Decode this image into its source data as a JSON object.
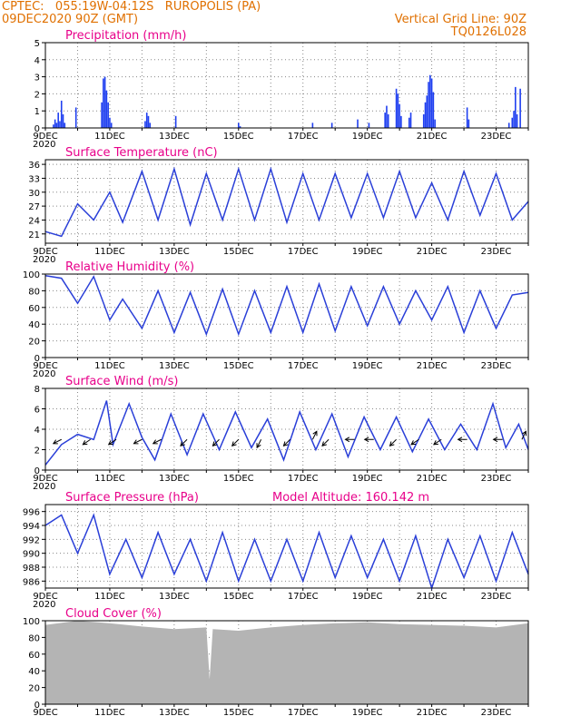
{
  "header": {
    "line1_left": "CPTEC:   055:19W-04:12S   RUROPOLIS (PA)",
    "line2_left": "09DEC2020 90Z (GMT)",
    "line1_right": "Vertical Grid Line: 90Z",
    "line2_right": "TQ0126L028"
  },
  "x_ticks": [
    "9DEC",
    "11DEC",
    "13DEC",
    "15DEC",
    "17DEC",
    "19DEC",
    "21DEC",
    "23DEC"
  ],
  "x_cut_label": "2020",
  "colors": {
    "title": "#e8008a",
    "header": "#e07000",
    "line": "#2a3fd8",
    "bar": "#1f3ff0",
    "cloud": "#b4b4b4",
    "grid": "#888888"
  },
  "chart_data": [
    {
      "id": "precip",
      "type": "bar",
      "title": "Precipitation (mm/h)",
      "ylim": [
        0,
        5
      ],
      "yticks": [
        "0",
        "1",
        "2",
        "3",
        "4",
        "5"
      ],
      "grid": true,
      "x_units": "days since 9DEC00Z",
      "x_range": [
        0,
        15
      ],
      "points": [
        [
          0.25,
          0.2
        ],
        [
          0.3,
          0.5
        ],
        [
          0.35,
          0.3
        ],
        [
          0.4,
          0.9
        ],
        [
          0.45,
          0.4
        ],
        [
          0.5,
          1.6
        ],
        [
          0.55,
          0.8
        ],
        [
          0.6,
          0.3
        ],
        [
          0.95,
          1.2
        ],
        [
          1.75,
          1.5
        ],
        [
          1.8,
          2.9
        ],
        [
          1.85,
          3.0
        ],
        [
          1.9,
          2.2
        ],
        [
          1.95,
          1.5
        ],
        [
          2.0,
          0.6
        ],
        [
          2.05,
          0.3
        ],
        [
          3.1,
          0.4
        ],
        [
          3.15,
          0.9
        ],
        [
          3.2,
          0.7
        ],
        [
          3.25,
          0.3
        ],
        [
          4.05,
          0.7
        ],
        [
          6.0,
          0.3
        ],
        [
          6.05,
          0.1
        ],
        [
          8.3,
          0.3
        ],
        [
          8.9,
          0.3
        ],
        [
          9.7,
          0.5
        ],
        [
          10.05,
          0.3
        ],
        [
          10.55,
          0.9
        ],
        [
          10.6,
          1.3
        ],
        [
          10.65,
          0.8
        ],
        [
          10.9,
          2.3
        ],
        [
          10.95,
          2.0
        ],
        [
          11.0,
          1.4
        ],
        [
          11.05,
          0.7
        ],
        [
          11.3,
          0.6
        ],
        [
          11.35,
          0.9
        ],
        [
          11.75,
          0.8
        ],
        [
          11.8,
          1.5
        ],
        [
          11.85,
          1.9
        ],
        [
          11.9,
          2.7
        ],
        [
          11.95,
          3.1
        ],
        [
          12.0,
          2.9
        ],
        [
          12.05,
          2.1
        ],
        [
          12.1,
          0.5
        ],
        [
          13.1,
          1.2
        ],
        [
          13.15,
          0.5
        ],
        [
          14.4,
          0.3
        ],
        [
          14.5,
          0.6
        ],
        [
          14.55,
          1.0
        ],
        [
          14.6,
          2.4
        ],
        [
          14.65,
          0.8
        ],
        [
          14.75,
          2.3
        ]
      ]
    },
    {
      "id": "temp",
      "type": "line",
      "title": "Surface Temperature (nC)",
      "ylim": [
        19,
        37
      ],
      "yticks": [
        "21",
        "24",
        "27",
        "30",
        "33",
        "36"
      ],
      "grid": true,
      "x_units": "days since 9DEC00Z",
      "points": [
        [
          0,
          21.5
        ],
        [
          0.5,
          20.5
        ],
        [
          1,
          27.5
        ],
        [
          1.5,
          24
        ],
        [
          2,
          30
        ],
        [
          2.4,
          23.5
        ],
        [
          3,
          34.5
        ],
        [
          3.5,
          24
        ],
        [
          4,
          35
        ],
        [
          4.5,
          23
        ],
        [
          5,
          34
        ],
        [
          5.5,
          24
        ],
        [
          6,
          35
        ],
        [
          6.5,
          24
        ],
        [
          7,
          35
        ],
        [
          7.5,
          23.5
        ],
        [
          8,
          34
        ],
        [
          8.5,
          24
        ],
        [
          9,
          34
        ],
        [
          9.5,
          24.5
        ],
        [
          10,
          34
        ],
        [
          10.5,
          24.5
        ],
        [
          11,
          34.5
        ],
        [
          11.5,
          24.5
        ],
        [
          12,
          32
        ],
        [
          12.5,
          24
        ],
        [
          13,
          34.5
        ],
        [
          13.5,
          25
        ],
        [
          14,
          34
        ],
        [
          14.5,
          24
        ],
        [
          15,
          28
        ]
      ]
    },
    {
      "id": "rh",
      "type": "line",
      "title": "Relative Humidity (%)",
      "ylim": [
        0,
        100
      ],
      "yticks": [
        "0",
        "20",
        "40",
        "60",
        "80",
        "100"
      ],
      "grid": true,
      "x_units": "days since 9DEC00Z",
      "points": [
        [
          0,
          98
        ],
        [
          0.5,
          95
        ],
        [
          1,
          65
        ],
        [
          1.5,
          97
        ],
        [
          2,
          45
        ],
        [
          2.4,
          70
        ],
        [
          3,
          35
        ],
        [
          3.5,
          80
        ],
        [
          4,
          30
        ],
        [
          4.5,
          78
        ],
        [
          5,
          28
        ],
        [
          5.5,
          82
        ],
        [
          6,
          28
        ],
        [
          6.5,
          80
        ],
        [
          7,
          30
        ],
        [
          7.5,
          85
        ],
        [
          8,
          30
        ],
        [
          8.5,
          88
        ],
        [
          9,
          32
        ],
        [
          9.5,
          85
        ],
        [
          10,
          38
        ],
        [
          10.5,
          85
        ],
        [
          11,
          40
        ],
        [
          11.5,
          80
        ],
        [
          12,
          45
        ],
        [
          12.5,
          85
        ],
        [
          13,
          30
        ],
        [
          13.5,
          80
        ],
        [
          14,
          35
        ],
        [
          14.5,
          75
        ],
        [
          15,
          78
        ]
      ]
    },
    {
      "id": "wind",
      "type": "line",
      "title": "Surface Wind (m/s)",
      "ylim": [
        0,
        8
      ],
      "yticks": [
        "0",
        "2",
        "4",
        "6",
        "8"
      ],
      "grid": true,
      "x_units": "days since 9DEC00Z",
      "points": [
        [
          0,
          0.5
        ],
        [
          0.5,
          2.5
        ],
        [
          1,
          3.5
        ],
        [
          1.5,
          3
        ],
        [
          1.9,
          6.8
        ],
        [
          2.1,
          2.5
        ],
        [
          2.6,
          6.5
        ],
        [
          3.0,
          3.2
        ],
        [
          3.4,
          1.0
        ],
        [
          3.9,
          5.5
        ],
        [
          4.4,
          1.5
        ],
        [
          4.9,
          5.5
        ],
        [
          5.4,
          2.0
        ],
        [
          5.9,
          5.7
        ],
        [
          6.4,
          2.2
        ],
        [
          6.9,
          5.0
        ],
        [
          7.4,
          1.0
        ],
        [
          7.9,
          5.7
        ],
        [
          8.4,
          2.0
        ],
        [
          8.9,
          5.5
        ],
        [
          9.4,
          1.3
        ],
        [
          9.9,
          5.2
        ],
        [
          10.4,
          2.0
        ],
        [
          10.9,
          5.2
        ],
        [
          11.4,
          1.8
        ],
        [
          11.9,
          5.0
        ],
        [
          12.4,
          2.0
        ],
        [
          12.9,
          4.5
        ],
        [
          13.4,
          2.0
        ],
        [
          13.9,
          6.5
        ],
        [
          14.3,
          2.2
        ],
        [
          14.7,
          4.5
        ],
        [
          15,
          2
        ]
      ],
      "arrows": [
        [
          0.5,
          -2,
          -1
        ],
        [
          1.4,
          -3,
          -2
        ],
        [
          2.2,
          -3,
          -2
        ],
        [
          3.0,
          -2,
          -1
        ],
        [
          3.6,
          -2,
          -1
        ],
        [
          4.4,
          -2,
          -2
        ],
        [
          5.4,
          -2,
          -2
        ],
        [
          6.0,
          -2,
          -2
        ],
        [
          6.7,
          -1,
          -2
        ],
        [
          7.6,
          -2,
          -2
        ],
        [
          8.3,
          1,
          2
        ],
        [
          8.8,
          -2,
          -2
        ],
        [
          9.6,
          -2,
          0
        ],
        [
          10.2,
          -2,
          0
        ],
        [
          10.9,
          -1,
          -1
        ],
        [
          11.6,
          -3,
          -2
        ],
        [
          12.3,
          -3,
          -2
        ],
        [
          13.1,
          -2,
          0
        ],
        [
          14.2,
          -2,
          0
        ],
        [
          14.8,
          1,
          2
        ]
      ]
    },
    {
      "id": "press",
      "type": "line",
      "title": "Surface Pressure (hPa)",
      "annotation": "Model Altitude: 160.142 m",
      "ylim": [
        985,
        997
      ],
      "yticks": [
        "986",
        "988",
        "990",
        "992",
        "994",
        "996"
      ],
      "grid": true,
      "x_units": "days since 9DEC00Z",
      "points": [
        [
          0,
          994
        ],
        [
          0.5,
          995.5
        ],
        [
          1,
          990
        ],
        [
          1.5,
          995.5
        ],
        [
          2,
          987
        ],
        [
          2.5,
          992
        ],
        [
          3,
          986.5
        ],
        [
          3.5,
          993
        ],
        [
          4,
          987
        ],
        [
          4.5,
          992
        ],
        [
          5,
          986
        ],
        [
          5.5,
          993
        ],
        [
          6,
          986
        ],
        [
          6.5,
          992
        ],
        [
          7,
          986
        ],
        [
          7.5,
          992
        ],
        [
          8,
          986
        ],
        [
          8.5,
          993
        ],
        [
          9,
          986.5
        ],
        [
          9.5,
          992.5
        ],
        [
          10,
          986.5
        ],
        [
          10.5,
          992
        ],
        [
          11,
          986
        ],
        [
          11.5,
          992.5
        ],
        [
          12,
          985
        ],
        [
          12.5,
          992
        ],
        [
          13,
          986.5
        ],
        [
          13.5,
          992.5
        ],
        [
          14,
          986
        ],
        [
          14.5,
          993
        ],
        [
          15,
          987
        ]
      ]
    },
    {
      "id": "cloud",
      "type": "area",
      "title": "Cloud Cover (%)",
      "ylim": [
        0,
        100
      ],
      "yticks": [
        "0",
        "20",
        "40",
        "60",
        "80",
        "100"
      ],
      "grid": true,
      "x_units": "days since 9DEC00Z",
      "points": [
        [
          0,
          95
        ],
        [
          1,
          100
        ],
        [
          2,
          97
        ],
        [
          3,
          93
        ],
        [
          4,
          90
        ],
        [
          5,
          92
        ],
        [
          5.1,
          30
        ],
        [
          5.2,
          90
        ],
        [
          6,
          88
        ],
        [
          7,
          92
        ],
        [
          8,
          95
        ],
        [
          9,
          97
        ],
        [
          10,
          98
        ],
        [
          11,
          96
        ],
        [
          12,
          95
        ],
        [
          13,
          94
        ],
        [
          14,
          92
        ],
        [
          15,
          97
        ]
      ]
    }
  ]
}
